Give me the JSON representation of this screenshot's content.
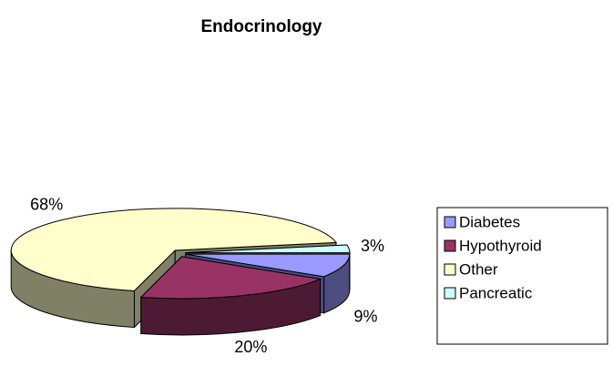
{
  "chart_data": {
    "type": "pie",
    "title": "Endocrinology",
    "categories": [
      "Diabetes",
      "Hypothyroid",
      "Other",
      "Pancreatic"
    ],
    "values": [
      9,
      20,
      68,
      3
    ],
    "value_labels": [
      "9%",
      "20%",
      "68%",
      "3%"
    ],
    "colors": [
      "#9999ff",
      "#993366",
      "#ffffcc",
      "#ccffff"
    ],
    "legend": "right"
  }
}
